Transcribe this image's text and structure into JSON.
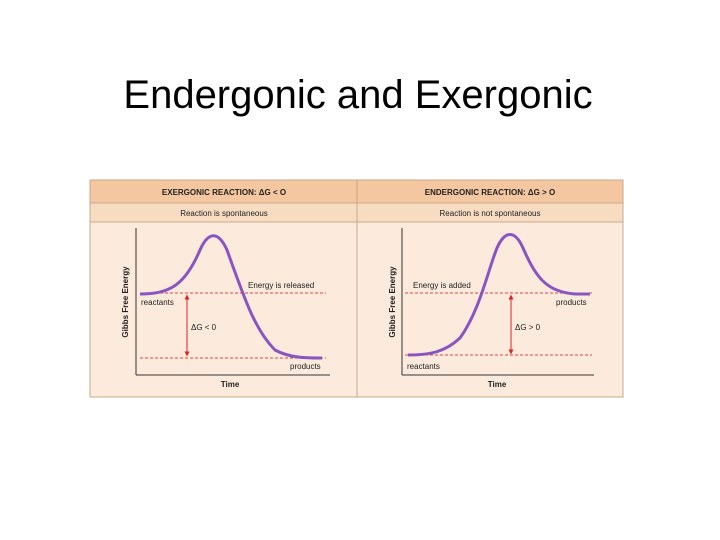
{
  "title": "Endergonic and Exergonic",
  "panels": [
    {
      "header": "EXERGONIC REACTION: ΔG < O",
      "subheader": "Reaction is spontaneous",
      "y_label": "Gibbs Free Energy",
      "x_label": "Time",
      "energy_note": "Energy is released",
      "delta_g": "ΔG < 0",
      "reactants": "reactants",
      "products": "products"
    },
    {
      "header": "ENDERGONIC REACTION: ΔG > O",
      "subheader": "Reaction is not spontaneous",
      "y_label": "Gibbs Free Energy",
      "x_label": "Time",
      "energy_note": "Energy is added",
      "delta_g": "ΔG > 0",
      "reactants": "reactants",
      "products": "products"
    }
  ]
}
